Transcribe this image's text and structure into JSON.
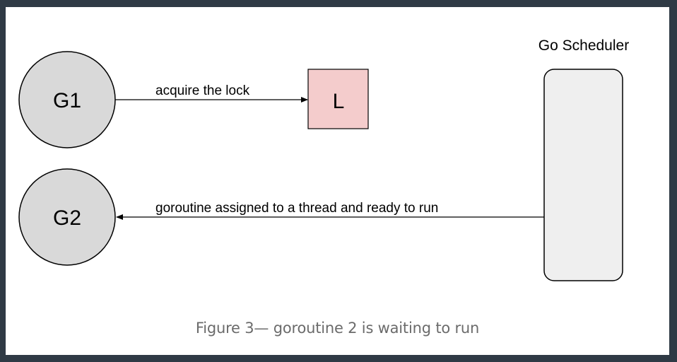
{
  "diagram": {
    "nodes": {
      "g1": "G1",
      "g2": "G2",
      "lock": "L",
      "scheduler": "Go Scheduler"
    },
    "edges": {
      "acquire": "acquire the lock",
      "assigned": "goroutine assigned to a thread and ready to run"
    },
    "colors": {
      "goroutine_fill": "#d9d9d9",
      "lock_fill": "#f4cccc",
      "scheduler_fill": "#efefef",
      "stroke": "#000000",
      "caption": "#6b6b6b"
    }
  },
  "caption": "Figure 3— goroutine 2 is waiting to run"
}
